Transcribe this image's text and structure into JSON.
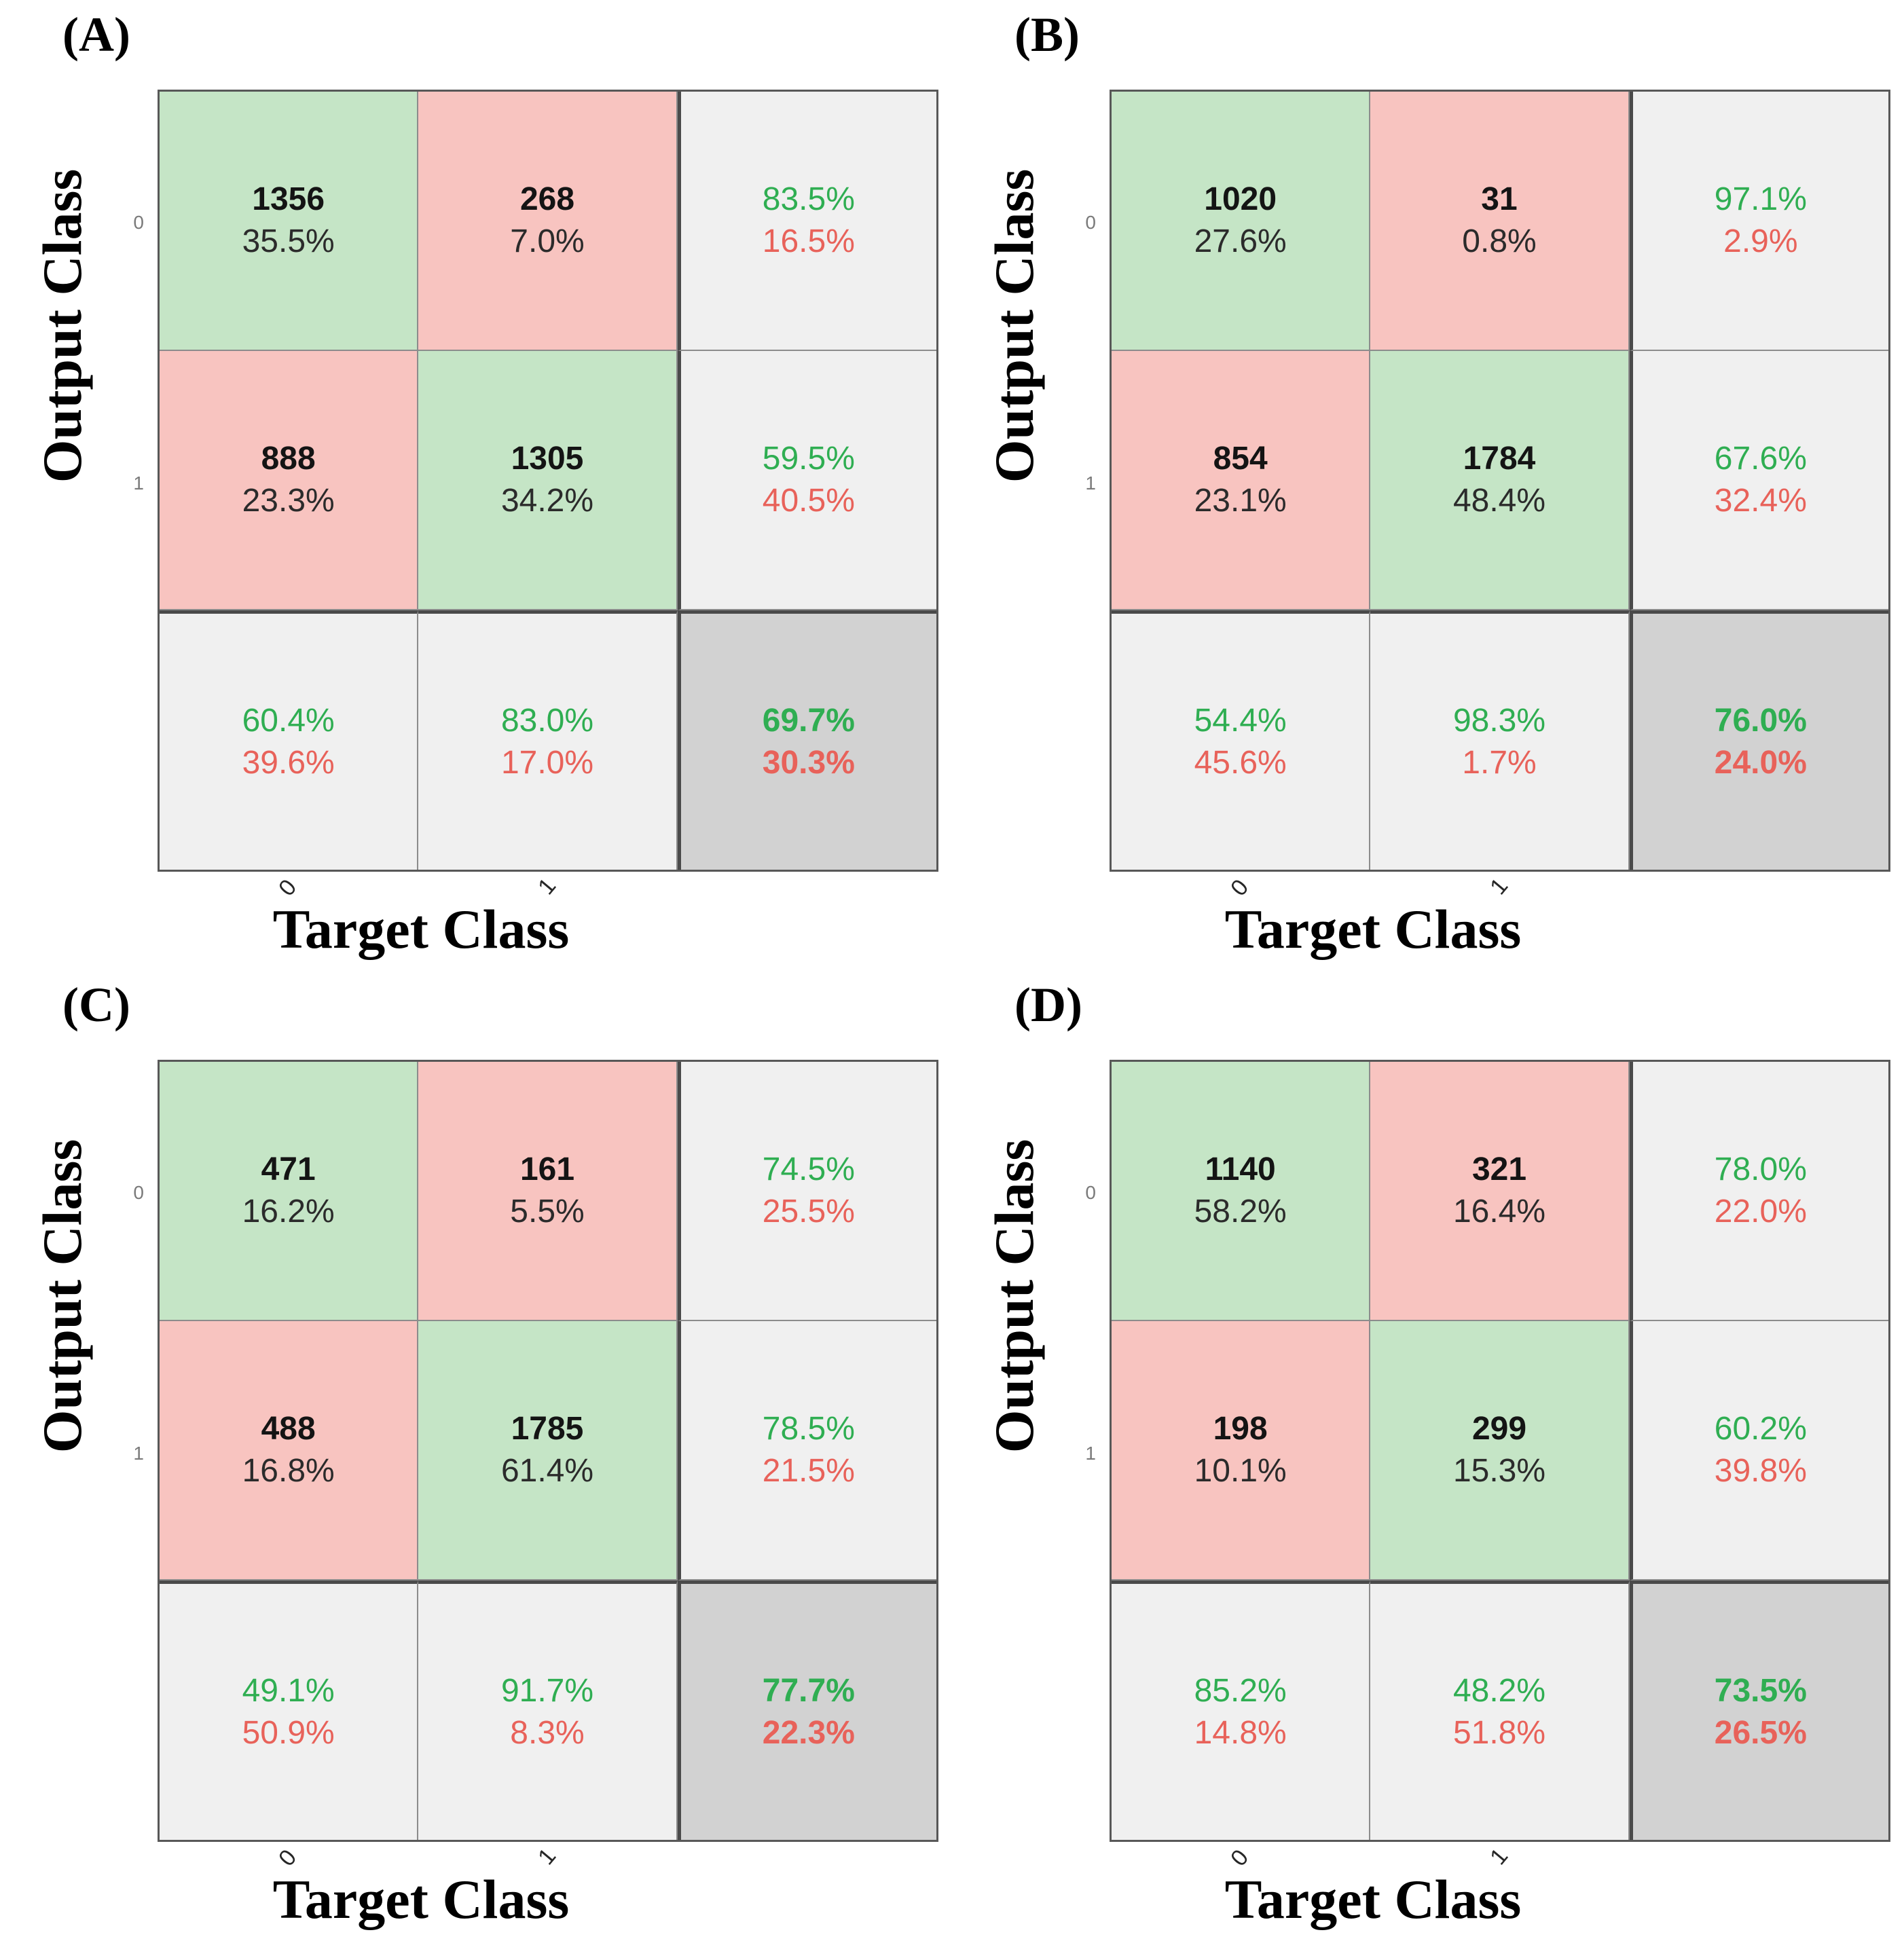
{
  "colors": {
    "green_fill": "#c5e5c6",
    "red_fill": "#f8c4c0",
    "gray_fill": "#f0f0f0",
    "dark_gray_fill": "#d2d2d2",
    "green_text": "#2fae52",
    "red_text": "#e8625a"
  },
  "panels": [
    {
      "label": "(A)",
      "y_label": "Output Class",
      "x_label": "Target Class",
      "y_ticks": [
        "0",
        "1"
      ],
      "x_ticks": [
        "0",
        "1"
      ],
      "cells": [
        {
          "count": "1356",
          "pct": "35.5%"
        },
        {
          "count": "268",
          "pct": "7.0%"
        },
        {
          "green": "83.5%",
          "red": "16.5%"
        },
        {
          "count": "888",
          "pct": "23.3%"
        },
        {
          "count": "1305",
          "pct": "34.2%"
        },
        {
          "green": "59.5%",
          "red": "40.5%"
        },
        {
          "green": "60.4%",
          "red": "39.6%"
        },
        {
          "green": "83.0%",
          "red": "17.0%"
        },
        {
          "green": "69.7%",
          "red": "30.3%"
        }
      ]
    },
    {
      "label": "(B)",
      "y_label": "Output Class",
      "x_label": "Target Class",
      "y_ticks": [
        "0",
        "1"
      ],
      "x_ticks": [
        "0",
        "1"
      ],
      "cells": [
        {
          "count": "1020",
          "pct": "27.6%"
        },
        {
          "count": "31",
          "pct": "0.8%"
        },
        {
          "green": "97.1%",
          "red": "2.9%"
        },
        {
          "count": "854",
          "pct": "23.1%"
        },
        {
          "count": "1784",
          "pct": "48.4%"
        },
        {
          "green": "67.6%",
          "red": "32.4%"
        },
        {
          "green": "54.4%",
          "red": "45.6%"
        },
        {
          "green": "98.3%",
          "red": "1.7%"
        },
        {
          "green": "76.0%",
          "red": "24.0%"
        }
      ]
    },
    {
      "label": "(C)",
      "y_label": "Output Class",
      "x_label": "Target Class",
      "y_ticks": [
        "0",
        "1"
      ],
      "x_ticks": [
        "0",
        "1"
      ],
      "cells": [
        {
          "count": "471",
          "pct": "16.2%"
        },
        {
          "count": "161",
          "pct": "5.5%"
        },
        {
          "green": "74.5%",
          "red": "25.5%"
        },
        {
          "count": "488",
          "pct": "16.8%"
        },
        {
          "count": "1785",
          "pct": "61.4%"
        },
        {
          "green": "78.5%",
          "red": "21.5%"
        },
        {
          "green": "49.1%",
          "red": "50.9%"
        },
        {
          "green": "91.7%",
          "red": "8.3%"
        },
        {
          "green": "77.7%",
          "red": "22.3%"
        }
      ]
    },
    {
      "label": "(D)",
      "y_label": "Output Class",
      "x_label": "Target Class",
      "y_ticks": [
        "0",
        "1"
      ],
      "x_ticks": [
        "0",
        "1"
      ],
      "cells": [
        {
          "count": "1140",
          "pct": "58.2%"
        },
        {
          "count": "321",
          "pct": "16.4%"
        },
        {
          "green": "78.0%",
          "red": "22.0%"
        },
        {
          "count": "198",
          "pct": "10.1%"
        },
        {
          "count": "299",
          "pct": "15.3%"
        },
        {
          "green": "60.2%",
          "red": "39.8%"
        },
        {
          "green": "85.2%",
          "red": "14.8%"
        },
        {
          "green": "48.2%",
          "red": "51.8%"
        },
        {
          "green": "73.5%",
          "red": "26.5%"
        }
      ]
    }
  ],
  "chart_data": [
    {
      "type": "heatmap",
      "title": "(A)",
      "xlabel": "Target Class",
      "ylabel": "Output Class",
      "x": [
        "0",
        "1"
      ],
      "y": [
        "0",
        "1"
      ],
      "counts": [
        [
          1356,
          268
        ],
        [
          888,
          1305
        ]
      ],
      "cell_pct": [
        [
          "35.5%",
          "7.0%"
        ],
        [
          "23.3%",
          "34.2%"
        ]
      ],
      "row_summary": [
        {
          "correct": "83.5%",
          "incorrect": "16.5%"
        },
        {
          "correct": "59.5%",
          "incorrect": "40.5%"
        }
      ],
      "col_summary": [
        {
          "correct": "60.4%",
          "incorrect": "39.6%"
        },
        {
          "correct": "83.0%",
          "incorrect": "17.0%"
        }
      ],
      "overall": {
        "correct": "69.7%",
        "incorrect": "30.3%"
      }
    },
    {
      "type": "heatmap",
      "title": "(B)",
      "xlabel": "Target Class",
      "ylabel": "Output Class",
      "x": [
        "0",
        "1"
      ],
      "y": [
        "0",
        "1"
      ],
      "counts": [
        [
          1020,
          31
        ],
        [
          854,
          1784
        ]
      ],
      "cell_pct": [
        [
          "27.6%",
          "0.8%"
        ],
        [
          "23.1%",
          "48.4%"
        ]
      ],
      "row_summary": [
        {
          "correct": "97.1%",
          "incorrect": "2.9%"
        },
        {
          "correct": "67.6%",
          "incorrect": "32.4%"
        }
      ],
      "col_summary": [
        {
          "correct": "54.4%",
          "incorrect": "45.6%"
        },
        {
          "correct": "98.3%",
          "incorrect": "1.7%"
        }
      ],
      "overall": {
        "correct": "76.0%",
        "incorrect": "24.0%"
      }
    },
    {
      "type": "heatmap",
      "title": "(C)",
      "xlabel": "Target Class",
      "ylabel": "Output Class",
      "x": [
        "0",
        "1"
      ],
      "y": [
        "0",
        "1"
      ],
      "counts": [
        [
          471,
          161
        ],
        [
          488,
          1785
        ]
      ],
      "cell_pct": [
        [
          "16.2%",
          "5.5%"
        ],
        [
          "16.8%",
          "61.4%"
        ]
      ],
      "row_summary": [
        {
          "correct": "74.5%",
          "incorrect": "25.5%"
        },
        {
          "correct": "78.5%",
          "incorrect": "21.5%"
        }
      ],
      "col_summary": [
        {
          "correct": "49.1%",
          "incorrect": "50.9%"
        },
        {
          "correct": "91.7%",
          "incorrect": "8.3%"
        }
      ],
      "overall": {
        "correct": "77.7%",
        "incorrect": "22.3%"
      }
    },
    {
      "type": "heatmap",
      "title": "(D)",
      "xlabel": "Target Class",
      "ylabel": "Output Class",
      "x": [
        "0",
        "1"
      ],
      "y": [
        "0",
        "1"
      ],
      "counts": [
        [
          1140,
          321
        ],
        [
          198,
          299
        ]
      ],
      "cell_pct": [
        [
          "58.2%",
          "16.4%"
        ],
        [
          "10.1%",
          "15.3%"
        ]
      ],
      "row_summary": [
        {
          "correct": "78.0%",
          "incorrect": "22.0%"
        },
        {
          "correct": "60.2%",
          "incorrect": "39.8%"
        }
      ],
      "col_summary": [
        {
          "correct": "85.2%",
          "incorrect": "14.8%"
        },
        {
          "correct": "48.2%",
          "incorrect": "51.8%"
        }
      ],
      "overall": {
        "correct": "73.5%",
        "incorrect": "26.5%"
      }
    }
  ]
}
